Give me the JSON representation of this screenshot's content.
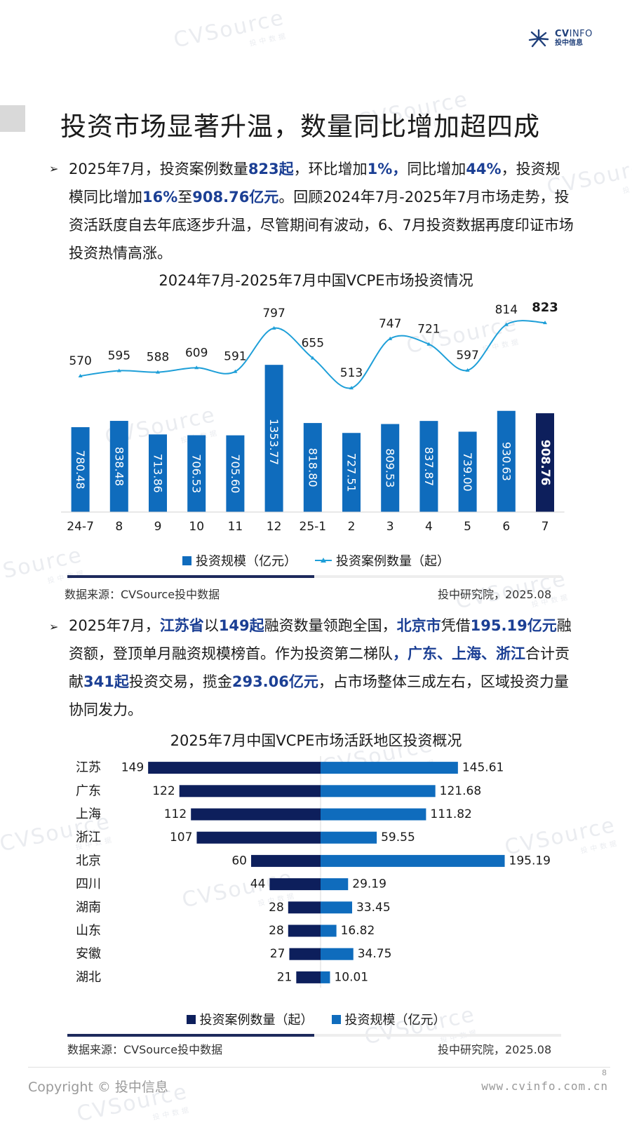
{
  "header": {
    "logo_primary": "CV",
    "logo_secondary": "INFO",
    "logo_sub": "投中信息",
    "page_title": "投资市场显著升温，数量同比增加超四成"
  },
  "watermark": {
    "text": "CVSource",
    "sub": "投中数据"
  },
  "paragraph1": {
    "runs": [
      {
        "t": "2025年7月，投资案例数量",
        "b": false
      },
      {
        "t": "823起",
        "b": true
      },
      {
        "t": "，环比增加",
        "b": false
      },
      {
        "t": "1%，",
        "b": true
      },
      {
        "t": "同比增加",
        "b": false
      },
      {
        "t": "44%",
        "b": true
      },
      {
        "t": "，投资规模同比增加",
        "b": false
      },
      {
        "t": "16%",
        "b": true
      },
      {
        "t": "至",
        "b": false
      },
      {
        "t": "908.76亿元",
        "b": true
      },
      {
        "t": "。回顾2024年7月-2025年7月市场走势，投资活跃度自去年底逐步升温，尽管期间有波动，6、7月投资数据再度印证市场投资热情高涨。",
        "b": false
      }
    ]
  },
  "chart_data": [
    {
      "type": "bar",
      "title": "2024年7月-2025年7月中国VCPE市场投资情况",
      "categories": [
        "24-7",
        "8",
        "9",
        "10",
        "11",
        "12",
        "25-1",
        "2",
        "3",
        "4",
        "5",
        "6",
        "7"
      ],
      "series": [
        {
          "name": "投资规模（亿元）",
          "type": "bar",
          "values": [
            780.48,
            838.48,
            713.86,
            706.53,
            705.6,
            1353.77,
            818.8,
            727.51,
            809.53,
            837.87,
            739.0,
            930.63,
            908.76
          ],
          "labels": [
            "780.48",
            "838.48",
            "713.86",
            "706.53",
            "705.60",
            "1353.77",
            "818.80",
            "727.51",
            "809.53",
            "837.87",
            "739.00",
            "930.63",
            "908.76"
          ]
        },
        {
          "name": "投资案例数量（起）",
          "type": "line",
          "values": [
            570,
            595,
            588,
            609,
            591,
            797,
            655,
            513,
            747,
            721,
            597,
            814,
            823
          ]
        }
      ],
      "colors": {
        "bar": "#0f6cbd",
        "bar_highlight": "#0d1f5c",
        "line": "#1e9fd8"
      },
      "highlight_index": 12,
      "source": "数据来源：CVSource投中数据",
      "credit": "投中研究院，2025.08"
    },
    {
      "type": "bar",
      "orientation": "horizontal-diverging",
      "title": "2025年7月中国VCPE市场活跃地区投资概况",
      "categories": [
        "江苏",
        "广东",
        "上海",
        "浙江",
        "北京",
        "四川",
        "湖南",
        "山东",
        "安徽",
        "湖北"
      ],
      "series": [
        {
          "name": "投资案例数量（起）",
          "values": [
            149,
            122,
            112,
            107,
            60,
            44,
            28,
            28,
            27,
            21
          ],
          "labels": [
            "149",
            "122",
            "112",
            "107",
            "60",
            "44",
            "28",
            "28",
            "27",
            "21"
          ]
        },
        {
          "name": "投资规模（亿元）",
          "values": [
            145.61,
            121.68,
            111.82,
            59.55,
            195.19,
            29.19,
            33.45,
            16.82,
            34.75,
            10.01
          ],
          "labels": [
            "145.61",
            "121.68",
            "111.82",
            "59.55",
            "195.19",
            "29.19",
            "33.45",
            "16.82",
            "34.75",
            "10.01"
          ]
        }
      ],
      "colors": {
        "count": "#0d1f5c",
        "amount": "#0f6cbd"
      },
      "source": "数据来源：CVSource投中数据",
      "credit": "投中研究院，2025.08"
    }
  ],
  "paragraph2": {
    "runs": [
      {
        "t": "2025年7月，",
        "b": false
      },
      {
        "t": "江苏省",
        "b": true
      },
      {
        "t": "以",
        "b": false
      },
      {
        "t": "149起",
        "b": true
      },
      {
        "t": "融资数量领跑全国，",
        "b": false
      },
      {
        "t": "北京市",
        "b": true
      },
      {
        "t": "凭借",
        "b": false
      },
      {
        "t": "195.19亿元",
        "b": true
      },
      {
        "t": "融资额，登顶单月融资规模榜首。作为投资第二梯队",
        "b": false
      },
      {
        "t": "，广东、上海、浙江",
        "b": true
      },
      {
        "t": "合计贡献",
        "b": false
      },
      {
        "t": "341起",
        "b": true
      },
      {
        "t": "投资交易，揽金",
        "b": false
      },
      {
        "t": "293.06亿元",
        "b": true
      },
      {
        "t": "，占市场整体三成左右，区域投资力量协同发力。",
        "b": false
      }
    ]
  },
  "footer": {
    "copyright": "Copyright © 投中信息",
    "website": "www.cvinfo.com.cn",
    "page_number": "8"
  }
}
